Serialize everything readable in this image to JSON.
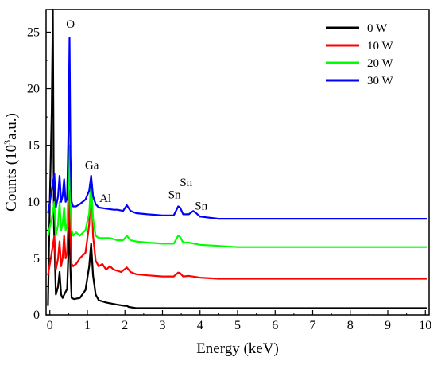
{
  "chart_data": {
    "type": "line",
    "xlabel": "Energy (keV)",
    "ylabel_prefix": "Counts (10",
    "ylabel_sup": "3",
    "ylabel_suffix": "a.u.)",
    "xlim": [
      -0.1,
      10.1
    ],
    "ylim": [
      0,
      27
    ],
    "xticks": [
      "0",
      "1",
      "2",
      "3",
      "4",
      "5",
      "6",
      "7",
      "8",
      "9",
      "10"
    ],
    "yticks": [
      "0",
      "5",
      "10",
      "15",
      "20",
      "25"
    ],
    "legend_position": "top-right",
    "annotations": [
      {
        "text": "O",
        "x": 0.55,
        "y": 25.4
      },
      {
        "text": "Ga",
        "x": 1.12,
        "y": 12.9
      },
      {
        "text": "Al",
        "x": 1.48,
        "y": 10.0
      },
      {
        "text": "Sn",
        "x": 3.32,
        "y": 10.3
      },
      {
        "text": "Sn",
        "x": 3.63,
        "y": 11.4
      },
      {
        "text": "Sn",
        "x": 4.03,
        "y": 9.3
      }
    ],
    "series": [
      {
        "name": "0 W",
        "color": "#000000",
        "x": [
          -0.05,
          0.0,
          0.05,
          0.08,
          0.11,
          0.16,
          0.22,
          0.26,
          0.3,
          0.34,
          0.4,
          0.46,
          0.5,
          0.525,
          0.55,
          0.58,
          0.65,
          0.8,
          0.95,
          1.05,
          1.1,
          1.15,
          1.22,
          1.3,
          1.5,
          1.8,
          2.0,
          2.05,
          2.1,
          2.3,
          3.4,
          3.45,
          3.5,
          10.05
        ],
        "y": [
          0.8,
          10.0,
          18.0,
          27.0,
          8.0,
          1.8,
          2.5,
          3.8,
          1.8,
          1.5,
          1.9,
          2.3,
          6.0,
          8.7,
          4.0,
          1.5,
          1.4,
          1.5,
          2.2,
          4.3,
          6.3,
          3.5,
          1.8,
          1.3,
          1.1,
          0.9,
          0.8,
          0.8,
          0.7,
          0.6,
          0.6,
          0.6,
          0.6,
          0.6
        ]
      },
      {
        "name": "10 W",
        "color": "#ff0000",
        "x": [
          -0.05,
          0.05,
          0.12,
          0.16,
          0.22,
          0.26,
          0.3,
          0.34,
          0.38,
          0.42,
          0.46,
          0.5,
          0.525,
          0.55,
          0.58,
          0.62,
          0.7,
          0.8,
          0.95,
          1.05,
          1.1,
          1.15,
          1.22,
          1.3,
          1.4,
          1.5,
          1.6,
          1.7,
          1.8,
          1.9,
          2.05,
          2.15,
          2.3,
          2.6,
          3.0,
          3.3,
          3.42,
          3.47,
          3.55,
          3.7,
          4.0,
          4.5,
          5.0,
          10.05
        ],
        "y": [
          3.5,
          5.5,
          7.0,
          4.0,
          5.0,
          6.5,
          4.3,
          5.0,
          7.0,
          5.0,
          5.5,
          9.0,
          11.0,
          7.5,
          4.5,
          4.3,
          4.5,
          5.0,
          5.5,
          8.0,
          12.3,
          7.0,
          4.8,
          4.3,
          4.5,
          4.0,
          4.3,
          4.0,
          3.9,
          3.8,
          4.2,
          3.8,
          3.6,
          3.5,
          3.4,
          3.4,
          3.75,
          3.7,
          3.4,
          3.45,
          3.3,
          3.2,
          3.2,
          3.2
        ]
      },
      {
        "name": "20 W",
        "color": "#00ff00",
        "x": [
          -0.05,
          0.05,
          0.12,
          0.16,
          0.22,
          0.26,
          0.3,
          0.34,
          0.38,
          0.42,
          0.46,
          0.5,
          0.525,
          0.55,
          0.58,
          0.62,
          0.7,
          0.8,
          0.95,
          1.05,
          1.1,
          1.15,
          1.22,
          1.3,
          1.4,
          1.6,
          1.8,
          1.95,
          2.05,
          2.15,
          2.3,
          2.6,
          3.0,
          3.3,
          3.42,
          3.47,
          3.55,
          3.7,
          4.0,
          4.5,
          5.0,
          10.05
        ],
        "y": [
          7.0,
          8.5,
          10.0,
          7.0,
          8.0,
          10.0,
          7.5,
          8.0,
          9.5,
          7.5,
          8.0,
          12.0,
          15.0,
          10.0,
          7.5,
          7.0,
          7.3,
          7.0,
          7.5,
          9.0,
          11.7,
          8.5,
          7.0,
          6.8,
          6.8,
          6.8,
          6.6,
          6.6,
          7.0,
          6.6,
          6.5,
          6.4,
          6.3,
          6.3,
          7.0,
          6.9,
          6.4,
          6.4,
          6.2,
          6.1,
          6.0,
          6.0
        ]
      },
      {
        "name": "30 W",
        "color": "#0000ff",
        "x": [
          -0.05,
          0.05,
          0.12,
          0.16,
          0.22,
          0.26,
          0.3,
          0.34,
          0.38,
          0.42,
          0.46,
          0.5,
          0.525,
          0.55,
          0.58,
          0.62,
          0.7,
          0.8,
          0.95,
          1.05,
          1.1,
          1.15,
          1.22,
          1.3,
          1.5,
          1.7,
          1.8,
          1.95,
          2.05,
          2.15,
          2.3,
          2.6,
          3.0,
          3.3,
          3.42,
          3.47,
          3.55,
          3.7,
          3.82,
          3.9,
          4.0,
          4.5,
          5.0,
          10.05
        ],
        "y": [
          9.0,
          11.0,
          12.5,
          9.5,
          10.5,
          12.3,
          10.0,
          10.5,
          12.0,
          10.0,
          10.3,
          17.0,
          24.5,
          14.0,
          10.0,
          9.6,
          9.6,
          9.8,
          10.2,
          11.0,
          12.3,
          10.5,
          9.8,
          9.5,
          9.4,
          9.3,
          9.3,
          9.2,
          9.7,
          9.2,
          9.0,
          8.9,
          8.8,
          8.8,
          9.6,
          9.5,
          8.9,
          8.9,
          9.2,
          9.0,
          8.7,
          8.5,
          8.5,
          8.5
        ]
      }
    ]
  }
}
